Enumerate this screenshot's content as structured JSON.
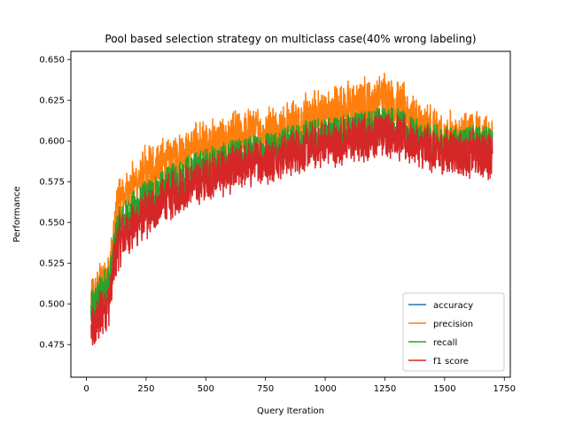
{
  "chart_data": {
    "type": "line",
    "title": "Pool based selection strategy on multiclass case(40% wrong labeling)",
    "xlabel": "Query Iteration",
    "ylabel": "Performance",
    "xlim": [
      -65,
      1775
    ],
    "ylim": [
      0.455,
      0.655
    ],
    "xticks": [
      0,
      250,
      500,
      750,
      1000,
      1250,
      1500,
      1750
    ],
    "yticks": [
      0.475,
      0.5,
      0.525,
      0.55,
      0.575,
      0.6,
      0.625,
      0.65
    ],
    "ytick_labels": [
      "0.475",
      "0.500",
      "0.525",
      "0.550",
      "0.575",
      "0.600",
      "0.625",
      "0.650"
    ],
    "grid": false,
    "legend_position": "lower-right",
    "x_range": [
      20,
      1700
    ],
    "series": [
      {
        "name": "accuracy",
        "color": "#1f77b4",
        "x": [
          20,
          50,
          100,
          130,
          200,
          300,
          400,
          500,
          600,
          700,
          800,
          900,
          1000,
          1100,
          1200,
          1250,
          1300,
          1350,
          1400,
          1500,
          1600,
          1700
        ],
        "values": [
          0.495,
          0.503,
          0.515,
          0.545,
          0.557,
          0.568,
          0.578,
          0.584,
          0.588,
          0.592,
          0.596,
          0.6,
          0.603,
          0.605,
          0.608,
          0.61,
          0.609,
          0.604,
          0.6,
          0.597,
          0.597,
          0.598
        ]
      },
      {
        "name": "precision",
        "color": "#ff7f0e",
        "x": [
          20,
          50,
          100,
          130,
          200,
          300,
          400,
          500,
          600,
          700,
          800,
          900,
          1000,
          1100,
          1200,
          1250,
          1300,
          1350,
          1400,
          1500,
          1600,
          1700
        ],
        "values": [
          0.498,
          0.507,
          0.522,
          0.56,
          0.574,
          0.584,
          0.593,
          0.598,
          0.601,
          0.604,
          0.607,
          0.611,
          0.617,
          0.62,
          0.624,
          0.626,
          0.623,
          0.617,
          0.608,
          0.603,
          0.602,
          0.601
        ]
      },
      {
        "name": "recall",
        "color": "#2ca02c",
        "x": [
          20,
          50,
          100,
          130,
          200,
          300,
          400,
          500,
          600,
          700,
          800,
          900,
          1000,
          1100,
          1200,
          1250,
          1300,
          1350,
          1400,
          1500,
          1600,
          1700
        ],
        "values": [
          0.495,
          0.503,
          0.515,
          0.545,
          0.557,
          0.568,
          0.578,
          0.584,
          0.588,
          0.592,
          0.596,
          0.6,
          0.603,
          0.605,
          0.608,
          0.61,
          0.609,
          0.604,
          0.6,
          0.597,
          0.597,
          0.598
        ]
      },
      {
        "name": "f1 score",
        "color": "#d62728",
        "x": [
          20,
          50,
          100,
          130,
          200,
          300,
          400,
          500,
          600,
          700,
          800,
          900,
          1000,
          1100,
          1200,
          1250,
          1300,
          1350,
          1400,
          1500,
          1600,
          1700
        ],
        "values": [
          0.482,
          0.49,
          0.505,
          0.536,
          0.548,
          0.56,
          0.57,
          0.577,
          0.582,
          0.586,
          0.59,
          0.594,
          0.598,
          0.6,
          0.603,
          0.605,
          0.604,
          0.599,
          0.596,
          0.593,
          0.592,
          0.592
        ]
      }
    ]
  }
}
